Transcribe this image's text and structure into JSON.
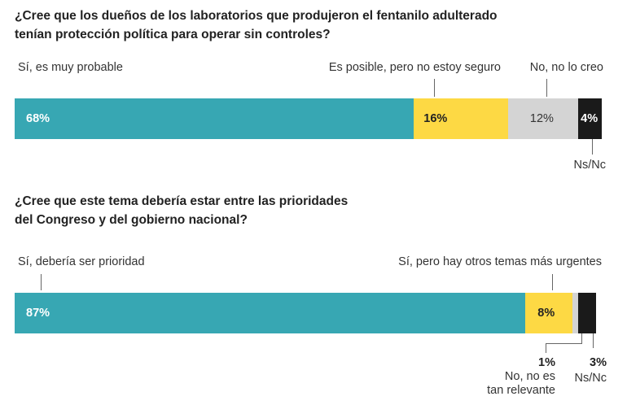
{
  "chart_data": [
    {
      "type": "bar",
      "orientation": "horizontal-stacked-100",
      "title": "¿Cree que los dueños de los laboratorios que produjeron el fentanilo adulterado tenían protección política para operar sin controles?",
      "categories": [
        "Sí, es muy probable",
        "Es posible, pero no estoy seguro",
        "No, no lo creo",
        "Ns/Nc"
      ],
      "values": [
        68,
        16,
        12,
        4
      ],
      "labels": [
        "68%",
        "16%",
        "12%",
        "4%"
      ],
      "colors": [
        "#37a7b3",
        "#fdd944",
        "#d4d4d4",
        "#1a1a1a"
      ],
      "label_colors": [
        "#ffffff",
        "#222222",
        "#333333",
        "#ffffff"
      ],
      "xlim": [
        0,
        100
      ]
    },
    {
      "type": "bar",
      "orientation": "horizontal-stacked-100",
      "title": "¿Cree que este tema debería estar entre las prioridades del Congreso y del gobierno nacional?",
      "categories": [
        "Sí, debería ser prioridad",
        "Sí, pero hay otros temas más urgentes",
        "No, no es tan relevante",
        "Ns/Nc"
      ],
      "category_lines": [
        [
          "Sí, debería ser prioridad"
        ],
        [
          "Sí, pero hay otros temas más urgentes"
        ],
        [
          "No, no es",
          "tan relevante"
        ],
        [
          "Ns/Nc"
        ]
      ],
      "values": [
        87,
        8,
        1,
        3
      ],
      "labels": [
        "87%",
        "8%",
        "1%",
        "3%"
      ],
      "colors": [
        "#37a7b3",
        "#fdd944",
        "#d4d4d4",
        "#1a1a1a"
      ],
      "label_colors": [
        "#ffffff",
        "#222222",
        "#222222",
        "#222222"
      ],
      "xlim": [
        0,
        100
      ]
    }
  ],
  "q1": {
    "title_line1": "¿Cree que los dueños de los laboratorios que produjeron el fentanilo adulterado",
    "title_line2": "tenían protección política para operar sin controles?"
  },
  "q2": {
    "title_line1": "¿Cree que este tema debería estar entre las prioridades",
    "title_line2": "del Congreso y del gobierno nacional?"
  }
}
